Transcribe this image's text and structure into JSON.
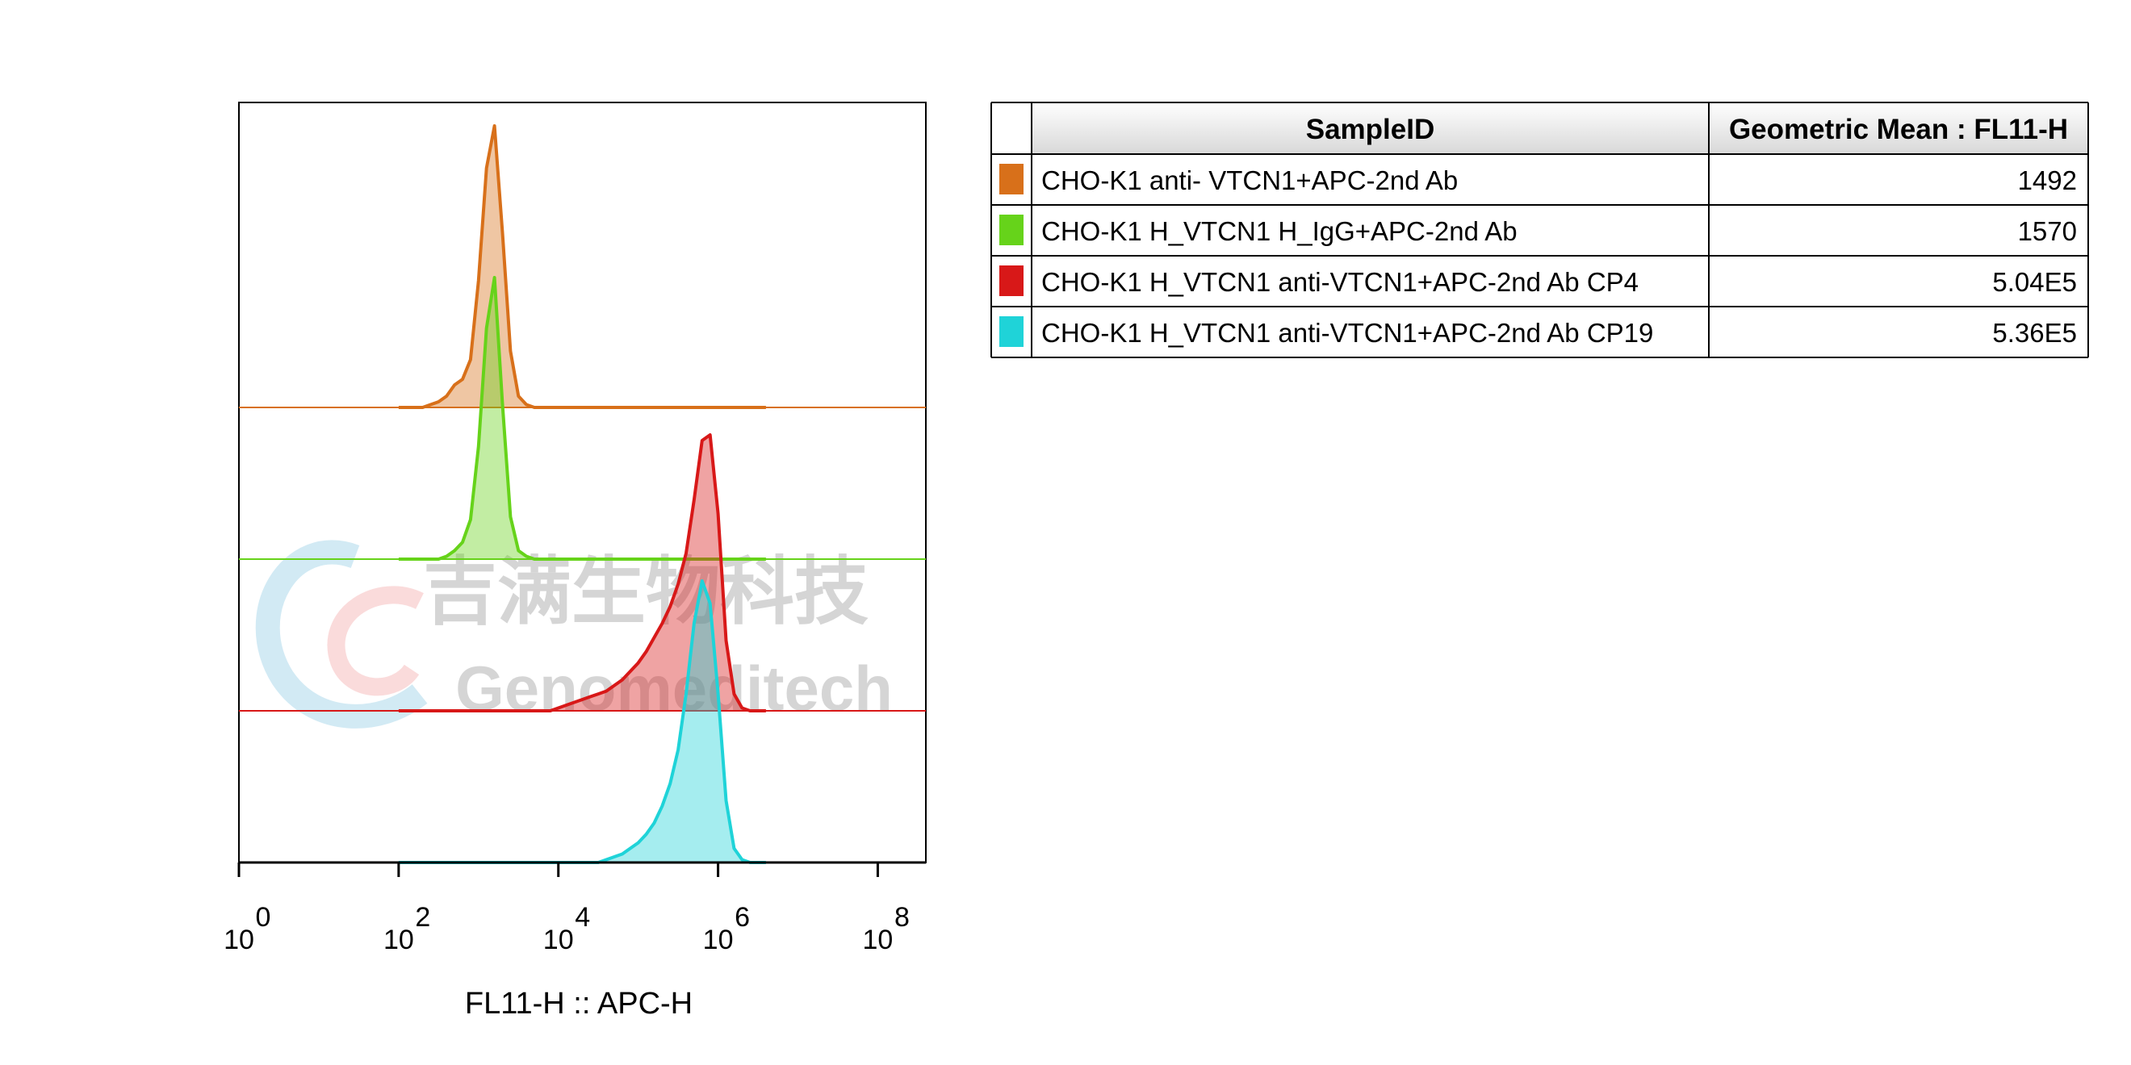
{
  "chart_data": {
    "type": "histogram-overlay",
    "x_label": "FL11-H :: APC-H",
    "x_scale": "log",
    "xlim": [
      1,
      400000000
    ],
    "xticks": [
      {
        "value": 1,
        "label": "10",
        "exponent": "0"
      },
      {
        "value": 100,
        "label": "10",
        "exponent": "2"
      },
      {
        "value": 10000,
        "label": "10",
        "exponent": "4"
      },
      {
        "value": 1000000,
        "label": "10",
        "exponent": "6"
      },
      {
        "value": 100000000,
        "label": "10",
        "exponent": "8"
      }
    ],
    "ylim": [
      0,
      100
    ],
    "x": [
      100,
      126,
      158,
      200,
      251,
      316,
      398,
      501,
      631,
      794,
      1000,
      1259,
      1585,
      1995,
      2512,
      3162,
      3981,
      5012,
      6310,
      7943,
      10000,
      12589,
      15849,
      19953,
      25119,
      31623,
      39811,
      50119,
      63096,
      79433,
      100000,
      125893,
      158489,
      199526,
      251189,
      316228,
      398107,
      501187,
      630957,
      794328,
      1000000,
      1258925,
      1584893,
      1995262,
      2511886,
      3162278,
      3981072
    ],
    "series": [
      {
        "name": "CHO-K1 anti- VTCN1+APC-2nd Ab",
        "color": "#d8701a",
        "values": [
          0,
          0,
          0,
          0,
          1,
          2,
          4,
          8,
          10,
          17,
          45,
          85,
          100,
          62,
          20,
          4,
          1,
          0,
          0,
          0,
          0,
          0,
          0,
          0,
          0,
          0,
          0,
          0,
          0,
          0,
          0,
          0,
          0,
          0,
          0,
          0,
          0,
          0,
          0,
          0,
          0,
          0,
          0,
          0,
          0,
          0,
          0
        ]
      },
      {
        "name": "CHO-K1 H_VTCN1 H_IgG+APC-2nd Ab",
        "color": "#66d31a",
        "values": [
          0,
          0,
          0,
          0,
          0,
          0,
          1,
          3,
          6,
          14,
          40,
          82,
          100,
          55,
          15,
          3,
          1,
          0,
          0,
          0,
          0,
          0,
          0,
          0,
          0,
          0,
          0,
          0,
          0,
          0,
          0,
          0,
          0,
          0,
          0,
          0,
          0,
          0,
          0,
          0,
          0,
          0,
          0,
          0,
          0,
          0,
          0
        ]
      },
      {
        "name": "CHO-K1 H_VTCN1 anti-VTCN1+APC-2nd Ab CP4",
        "color": "#d81818",
        "values": [
          0,
          0,
          0,
          0,
          0,
          0,
          0,
          0,
          0,
          0,
          0,
          0,
          0,
          0,
          0,
          0,
          0,
          0,
          0,
          0,
          1,
          2,
          3,
          4,
          5,
          6,
          7,
          9,
          11,
          14,
          17,
          21,
          26,
          31,
          37,
          45,
          56,
          75,
          96,
          98,
          70,
          25,
          6,
          1,
          0,
          0,
          0
        ]
      },
      {
        "name": "CHO-K1 H_VTCN1 anti-VTCN1+APC-2nd Ab CP19",
        "color": "#1fd3d8",
        "values": [
          0,
          0,
          0,
          0,
          0,
          0,
          0,
          0,
          0,
          0,
          0,
          0,
          0,
          0,
          0,
          0,
          0,
          0,
          0,
          0,
          0,
          0,
          0,
          0,
          0,
          0,
          1,
          2,
          3,
          5,
          7,
          10,
          14,
          20,
          28,
          40,
          60,
          85,
          100,
          92,
          60,
          22,
          5,
          1,
          0,
          0,
          0
        ]
      }
    ],
    "table": {
      "header": [
        "SampleID",
        "Geometric Mean : FL11-H"
      ],
      "values": [
        "1492",
        "1570",
        "5.04E5",
        "5.36E5"
      ]
    },
    "watermark": {
      "chinese": "吉满生物科技",
      "english": "Genomeditech"
    }
  }
}
